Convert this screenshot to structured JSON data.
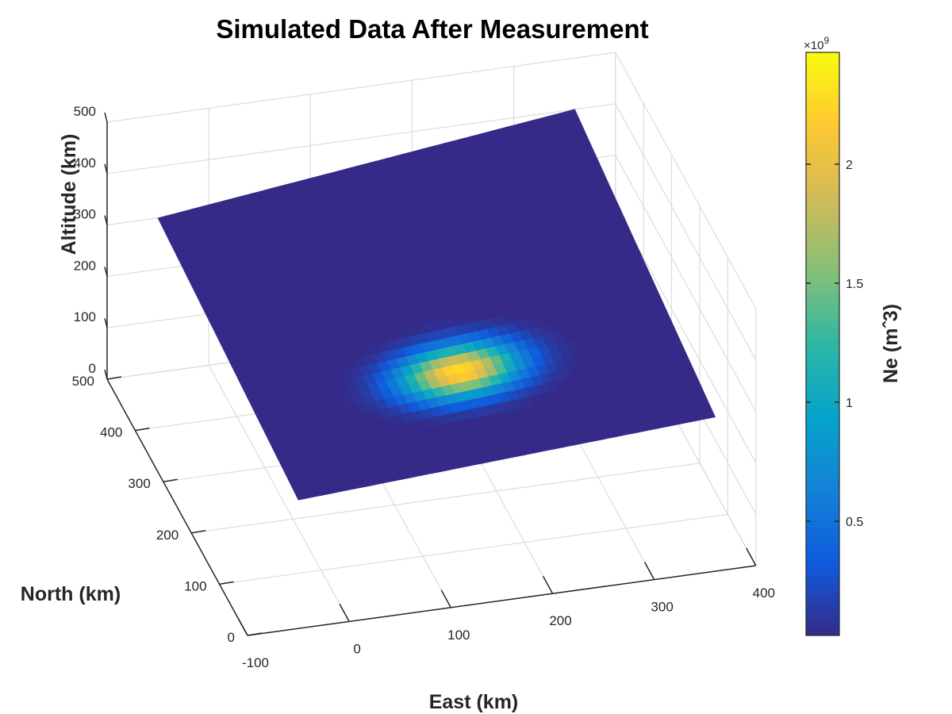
{
  "chart_data": {
    "type": "heatmap",
    "title": "Simulated Data After Measurement",
    "xlabel": "East (km)",
    "ylabel": "North (km)",
    "zlabel": "Altitude (km)",
    "x_ticks": [
      "-100",
      "0",
      "100",
      "200",
      "300",
      "400"
    ],
    "y_ticks": [
      "0",
      "100",
      "200",
      "300",
      "400",
      "500"
    ],
    "z_ticks": [
      "0",
      "100",
      "200",
      "300",
      "400",
      "500"
    ],
    "xlim": [
      -100,
      400
    ],
    "ylim": [
      0,
      500
    ],
    "zlim": [
      0,
      500
    ],
    "grid": true,
    "view": "3d-oblique",
    "slice": {
      "plane": "tilted slice through the volume",
      "corners_xyz_km": {
        "near_low": [
          -50,
          0,
          250
        ],
        "far_low": [
          360,
          0,
          300
        ],
        "far_high": [
          360,
          500,
          400
        ],
        "near_high": [
          -50,
          500,
          300
        ]
      },
      "background_value": 0.0,
      "blob": {
        "center_east_km": 150,
        "center_north_km": 150,
        "peak": 2.3,
        "spread_east_km": 55,
        "spread_north_km": 40
      }
    },
    "colorbar": {
      "label": "Ne (mˆ3)",
      "ticks": [
        "0.5",
        "1",
        "1.5",
        "2"
      ],
      "tick_values": [
        0.5,
        1.0,
        1.5,
        2.0
      ],
      "range": [
        0.02,
        2.47
      ],
      "exponent": "×10",
      "exponent_power": "9",
      "colormap": "parula",
      "colormap_stops": [
        "#352a87",
        "#0f5cdd",
        "#1481d6",
        "#06a4ca",
        "#2eb7a4",
        "#87bf77",
        "#d1bb59",
        "#fec832",
        "#f9fb0e"
      ]
    }
  }
}
